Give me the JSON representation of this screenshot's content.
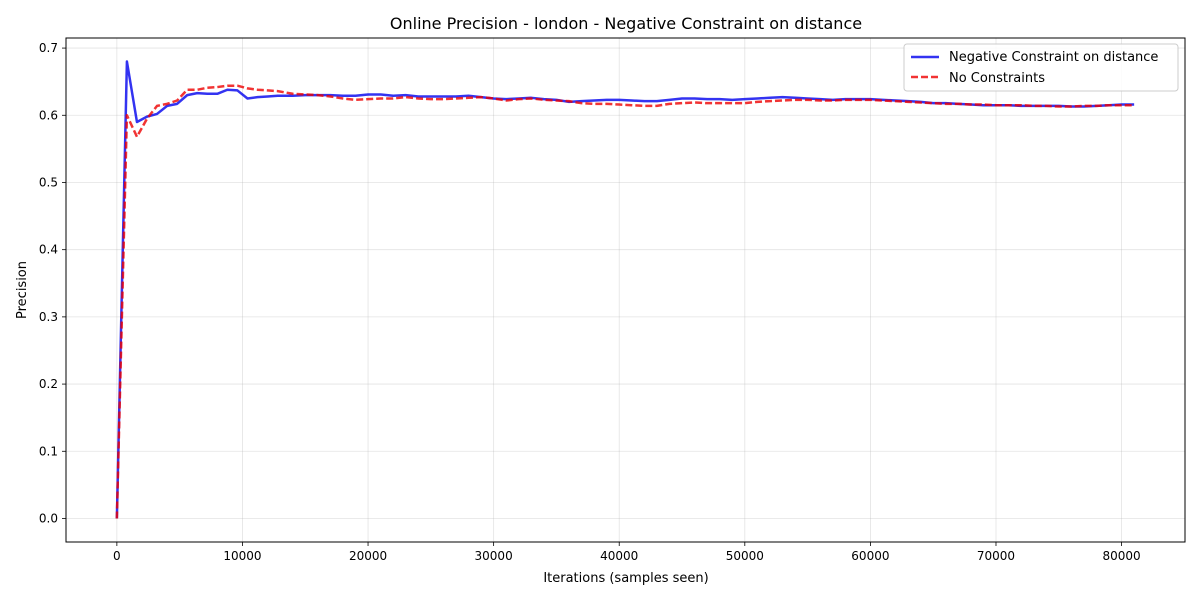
{
  "chart_data": {
    "type": "line",
    "title": "Online Precision - london - Negative Constraint on distance",
    "xlabel": "Iterations (samples seen)",
    "ylabel": "Precision",
    "xlim": [
      -4050,
      85050
    ],
    "ylim": [
      -0.035,
      0.715
    ],
    "xticks": [
      0,
      10000,
      20000,
      30000,
      40000,
      50000,
      60000,
      70000,
      80000
    ],
    "yticks": [
      0.0,
      0.1,
      0.2,
      0.3,
      0.4,
      0.5,
      0.6,
      0.7
    ],
    "grid": true,
    "legend_position": "top-right",
    "series": [
      {
        "name": "Negative Constraint on distance",
        "color": "#0000ee",
        "style": "solid",
        "x": [
          0,
          800,
          1600,
          2400,
          3200,
          4000,
          4800,
          5600,
          6400,
          7200,
          8000,
          8800,
          9600,
          10400,
          11200,
          12000,
          12800,
          14000,
          15000,
          16000,
          17000,
          18000,
          19000,
          20000,
          21000,
          22000,
          23000,
          24000,
          25000,
          26000,
          27000,
          28000,
          29000,
          30000,
          31000,
          32000,
          33000,
          34000,
          35000,
          36000,
          37000,
          38000,
          39000,
          40000,
          41000,
          42000,
          43000,
          44000,
          45000,
          46000,
          47000,
          48000,
          49000,
          50000,
          51000,
          52000,
          53000,
          54000,
          55000,
          56000,
          57000,
          58000,
          59000,
          60000,
          61000,
          62000,
          63000,
          64000,
          65000,
          66000,
          67000,
          68000,
          69000,
          70000,
          71000,
          72000,
          73000,
          74000,
          75000,
          76000,
          77000,
          78000,
          79000,
          80000,
          81000
        ],
        "y": [
          0.0,
          0.68,
          0.59,
          0.598,
          0.602,
          0.614,
          0.617,
          0.63,
          0.633,
          0.632,
          0.632,
          0.638,
          0.637,
          0.625,
          0.627,
          0.628,
          0.629,
          0.629,
          0.63,
          0.63,
          0.63,
          0.629,
          0.629,
          0.631,
          0.631,
          0.629,
          0.63,
          0.628,
          0.628,
          0.628,
          0.628,
          0.629,
          0.627,
          0.625,
          0.624,
          0.625,
          0.626,
          0.624,
          0.623,
          0.62,
          0.621,
          0.622,
          0.623,
          0.623,
          0.622,
          0.621,
          0.621,
          0.623,
          0.625,
          0.625,
          0.624,
          0.624,
          0.623,
          0.624,
          0.625,
          0.626,
          0.627,
          0.626,
          0.625,
          0.624,
          0.623,
          0.624,
          0.624,
          0.624,
          0.623,
          0.622,
          0.621,
          0.62,
          0.618,
          0.618,
          0.617,
          0.616,
          0.615,
          0.615,
          0.615,
          0.614,
          0.614,
          0.614,
          0.614,
          0.613,
          0.613,
          0.614,
          0.615,
          0.616,
          0.616
        ]
      },
      {
        "name": "No Constraints",
        "color": "#ee0000",
        "style": "dashed",
        "x": [
          0,
          800,
          1600,
          2400,
          3200,
          4000,
          4800,
          5600,
          6400,
          7200,
          8000,
          8800,
          9600,
          10400,
          11200,
          12000,
          12800,
          14000,
          15000,
          16000,
          17000,
          18000,
          19000,
          20000,
          21000,
          22000,
          23000,
          24000,
          25000,
          26000,
          27000,
          28000,
          29000,
          30000,
          31000,
          32000,
          33000,
          34000,
          35000,
          36000,
          37000,
          38000,
          39000,
          40000,
          41000,
          42000,
          43000,
          44000,
          45000,
          46000,
          47000,
          48000,
          49000,
          50000,
          51000,
          52000,
          53000,
          54000,
          55000,
          56000,
          57000,
          58000,
          59000,
          60000,
          61000,
          62000,
          63000,
          64000,
          65000,
          66000,
          67000,
          68000,
          69000,
          70000,
          71000,
          72000,
          73000,
          74000,
          75000,
          76000,
          77000,
          78000,
          79000,
          80000,
          81000
        ],
        "y": [
          0.0,
          0.6,
          0.568,
          0.595,
          0.614,
          0.617,
          0.622,
          0.638,
          0.638,
          0.641,
          0.642,
          0.644,
          0.644,
          0.64,
          0.638,
          0.637,
          0.636,
          0.632,
          0.631,
          0.63,
          0.628,
          0.625,
          0.623,
          0.624,
          0.625,
          0.625,
          0.627,
          0.625,
          0.624,
          0.624,
          0.625,
          0.626,
          0.627,
          0.625,
          0.622,
          0.624,
          0.625,
          0.623,
          0.622,
          0.621,
          0.618,
          0.617,
          0.617,
          0.616,
          0.615,
          0.614,
          0.614,
          0.617,
          0.618,
          0.619,
          0.618,
          0.618,
          0.618,
          0.618,
          0.62,
          0.621,
          0.622,
          0.623,
          0.623,
          0.622,
          0.622,
          0.623,
          0.623,
          0.623,
          0.622,
          0.621,
          0.62,
          0.619,
          0.618,
          0.617,
          0.617,
          0.616,
          0.616,
          0.615,
          0.615,
          0.615,
          0.614,
          0.614,
          0.613,
          0.613,
          0.614,
          0.614,
          0.615,
          0.615,
          0.615
        ]
      }
    ]
  }
}
